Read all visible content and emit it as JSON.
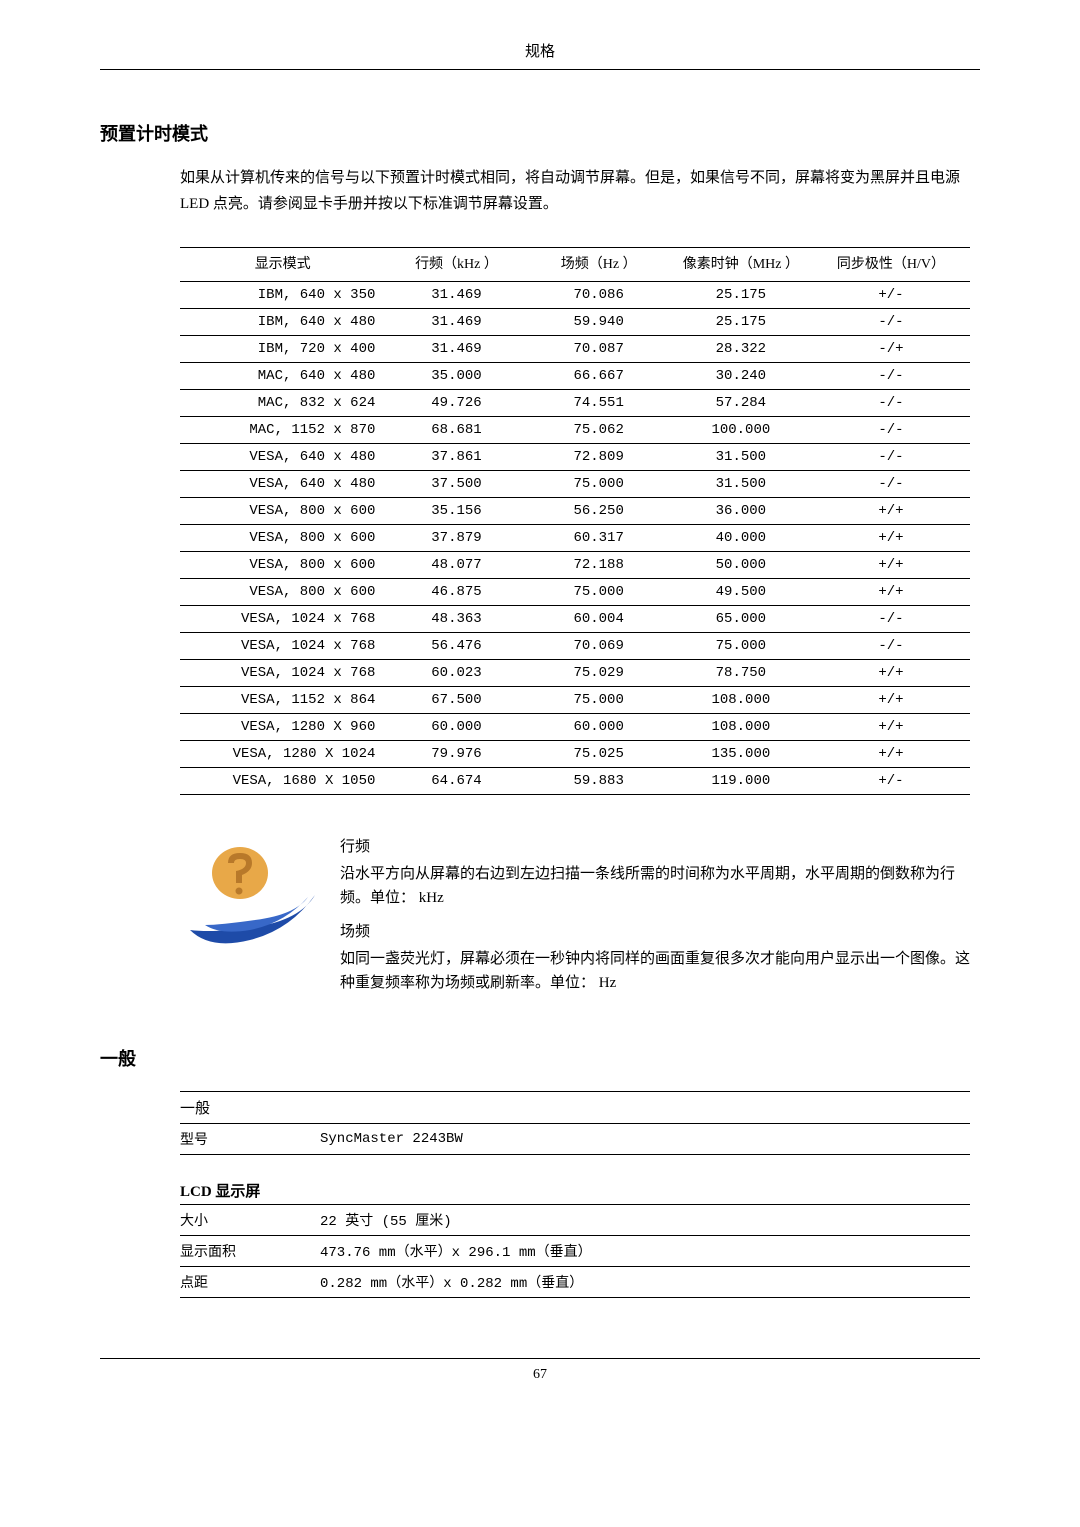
{
  "page": {
    "header": "规格",
    "footer_page": "67"
  },
  "section1": {
    "title": "预置计时模式",
    "intro": "如果从计算机传来的信号与以下预置计时模式相同，将自动调节屏幕。但是，如果信号不同，屏幕将变为黑屏并且电源 LED 点亮。请参阅显卡手册并按以下标准调节屏幕设置。"
  },
  "timing_table": {
    "headers": {
      "mode": "显示模式",
      "hfreq": "行频（kHz ）",
      "vfreq": "场频（Hz ）",
      "pixel": "像素时钟（MHz ）",
      "sync": "同步极性（H/V）"
    },
    "rows": [
      {
        "mode": "IBM, 640 x 350",
        "h": "31.469",
        "v": "70.086",
        "px": "25.175",
        "sync": "+/-"
      },
      {
        "mode": "IBM, 640 x 480",
        "h": "31.469",
        "v": "59.940",
        "px": "25.175",
        "sync": "-/-"
      },
      {
        "mode": "IBM, 720 x 400",
        "h": "31.469",
        "v": "70.087",
        "px": "28.322",
        "sync": "-/+"
      },
      {
        "mode": "MAC, 640 x 480",
        "h": "35.000",
        "v": "66.667",
        "px": "30.240",
        "sync": "-/-"
      },
      {
        "mode": "MAC, 832 x 624",
        "h": "49.726",
        "v": "74.551",
        "px": "57.284",
        "sync": "-/-"
      },
      {
        "mode": "MAC, 1152 x 870",
        "h": "68.681",
        "v": "75.062",
        "px": "100.000",
        "sync": "-/-"
      },
      {
        "mode": "VESA, 640 x 480",
        "h": "37.861",
        "v": "72.809",
        "px": "31.500",
        "sync": "-/-"
      },
      {
        "mode": "VESA, 640 x 480",
        "h": "37.500",
        "v": "75.000",
        "px": "31.500",
        "sync": "-/-"
      },
      {
        "mode": "VESA, 800 x 600",
        "h": "35.156",
        "v": "56.250",
        "px": "36.000",
        "sync": "+/+"
      },
      {
        "mode": "VESA, 800 x 600",
        "h": "37.879",
        "v": "60.317",
        "px": "40.000",
        "sync": "+/+"
      },
      {
        "mode": "VESA, 800 x 600",
        "h": "48.077",
        "v": "72.188",
        "px": "50.000",
        "sync": "+/+"
      },
      {
        "mode": "VESA, 800 x 600",
        "h": "46.875",
        "v": "75.000",
        "px": "49.500",
        "sync": "+/+"
      },
      {
        "mode": "VESA, 1024 x 768",
        "h": "48.363",
        "v": "60.004",
        "px": "65.000",
        "sync": "-/-"
      },
      {
        "mode": "VESA, 1024 x 768",
        "h": "56.476",
        "v": "70.069",
        "px": "75.000",
        "sync": "-/-"
      },
      {
        "mode": "VESA, 1024 x 768",
        "h": "60.023",
        "v": "75.029",
        "px": "78.750",
        "sync": "+/+"
      },
      {
        "mode": "VESA, 1152 x 864",
        "h": "67.500",
        "v": "75.000",
        "px": "108.000",
        "sync": "+/+"
      },
      {
        "mode": "VESA, 1280 X 960",
        "h": "60.000",
        "v": "60.000",
        "px": "108.000",
        "sync": "+/+"
      },
      {
        "mode": "VESA, 1280 X 1024",
        "h": "79.976",
        "v": "75.025",
        "px": "135.000",
        "sync": "+/+"
      },
      {
        "mode": "VESA, 1680 X 1050",
        "h": "64.674",
        "v": "59.883",
        "px": "119.000",
        "sync": "+/-"
      }
    ]
  },
  "info": {
    "hfreq_label": "行频",
    "hfreq_desc": "沿水平方向从屏幕的右边到左边扫描一条线所需的时间称为水平周期，水平周期的倒数称为行频。单位： kHz",
    "vfreq_label": "场频",
    "vfreq_desc": "如同一盏荧光灯，屏幕必须在一秒钟内将同样的画面重复很多次才能向用户显示出一个图像。这种重复频率称为场频或刷新率。单位： Hz",
    "icon_colors": {
      "swoosh": "#1e4ba8",
      "question": "#b8792a",
      "question_body": "#e8a848"
    }
  },
  "section2": {
    "title": "一般",
    "general": {
      "header": "一般",
      "model_label": "型号",
      "model_value": "SyncMaster 2243BW"
    },
    "lcd": {
      "header": "LCD 显示屏",
      "rows": [
        {
          "label": "大小",
          "value": "22 英寸 (55 厘米)"
        },
        {
          "label": "显示面积",
          "value": "473.76 mm（水平）x 296.1 mm（垂直）"
        },
        {
          "label": "点距",
          "value": "0.282 mm（水平）x 0.282 mm（垂直）"
        }
      ]
    }
  }
}
